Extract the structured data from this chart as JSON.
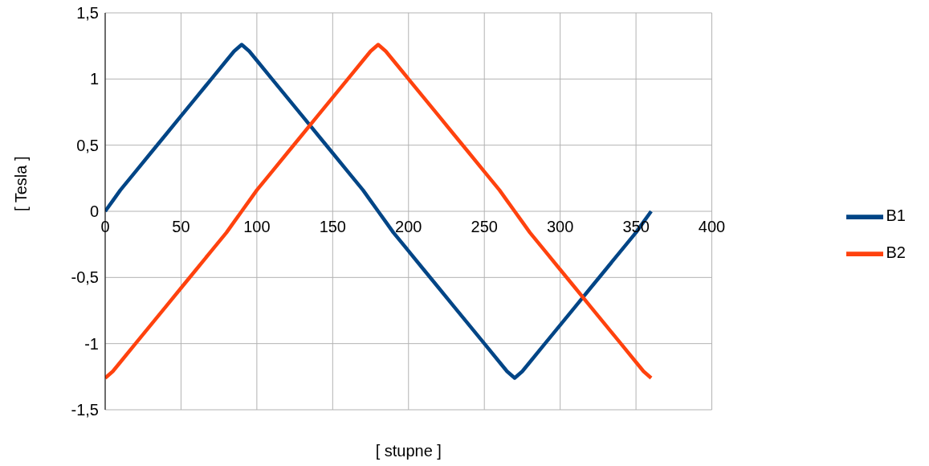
{
  "chart_data": {
    "type": "line",
    "xlabel": "[ stupne ]",
    "ylabel": "[ Tesla ]",
    "x": [
      0,
      5,
      10,
      20,
      30,
      40,
      50,
      60,
      70,
      80,
      85,
      90,
      95,
      100,
      110,
      120,
      130,
      140,
      150,
      160,
      170,
      175,
      180,
      185,
      190,
      200,
      210,
      220,
      230,
      240,
      250,
      260,
      265,
      270,
      275,
      280,
      290,
      300,
      310,
      320,
      330,
      340,
      350,
      355,
      360
    ],
    "series": [
      {
        "name": "B1",
        "color": "#004586",
        "values": [
          0,
          0.08,
          0.16,
          0.3,
          0.44,
          0.58,
          0.72,
          0.86,
          1.0,
          1.14,
          1.21,
          1.26,
          1.21,
          1.14,
          1.0,
          0.86,
          0.72,
          0.58,
          0.44,
          0.3,
          0.16,
          0.08,
          0,
          -0.08,
          -0.16,
          -0.3,
          -0.44,
          -0.58,
          -0.72,
          -0.86,
          -1.0,
          -1.14,
          -1.21,
          -1.26,
          -1.21,
          -1.14,
          -1.0,
          -0.86,
          -0.72,
          -0.58,
          -0.44,
          -0.3,
          -0.16,
          -0.08,
          0
        ]
      },
      {
        "name": "B2",
        "color": "#ff420e",
        "values": [
          -1.26,
          -1.21,
          -1.14,
          -1.0,
          -0.86,
          -0.72,
          -0.58,
          -0.44,
          -0.3,
          -0.16,
          -0.08,
          0,
          0.08,
          0.16,
          0.3,
          0.44,
          0.58,
          0.72,
          0.86,
          1.0,
          1.14,
          1.21,
          1.26,
          1.21,
          1.14,
          1.0,
          0.86,
          0.72,
          0.58,
          0.44,
          0.3,
          0.16,
          0.08,
          0,
          -0.08,
          -0.16,
          -0.3,
          -0.44,
          -0.58,
          -0.72,
          -0.86,
          -1.0,
          -1.14,
          -1.21,
          -1.26
        ]
      }
    ],
    "xlim": [
      0,
      400
    ],
    "xticks": [
      0,
      50,
      100,
      150,
      200,
      250,
      300,
      350,
      400
    ],
    "ylim": [
      -1.5,
      1.5
    ],
    "yticks": [
      {
        "value": -1.5,
        "label": "-1,5"
      },
      {
        "value": -1,
        "label": "-1"
      },
      {
        "value": -0.5,
        "label": "-0,5"
      },
      0,
      {
        "value": 0.5,
        "label": "0,5"
      },
      {
        "value": 1,
        "label": "1"
      },
      {
        "value": 1.5,
        "label": "1,5"
      }
    ],
    "grid": true,
    "legend": "right",
    "marker": "none",
    "line_style": "solid"
  }
}
